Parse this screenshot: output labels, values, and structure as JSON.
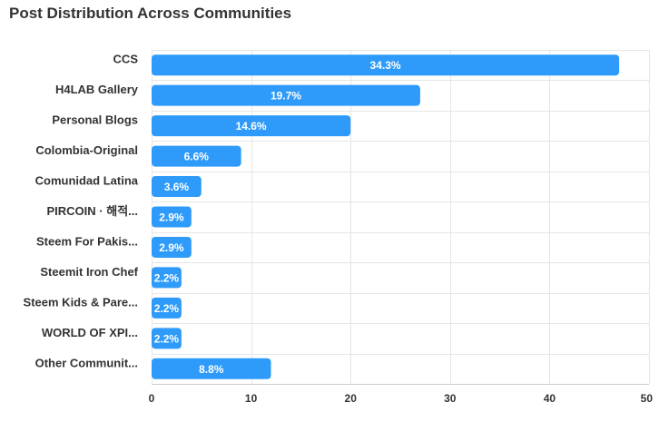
{
  "chart_data": {
    "type": "bar",
    "orientation": "horizontal",
    "title": "Post Distribution Across Communities",
    "xlabel": "",
    "ylabel": "",
    "categories": [
      "CCS",
      "H4LAB Gallery",
      "Personal Blogs",
      "Colombia-Original",
      "Comunidad Latina",
      "PIRCOIN · 해적...",
      "Steem For Pakis...",
      "Steemit Iron Chef",
      "Steem Kids & Pare...",
      "WORLD OF XPI...",
      "Other Communit..."
    ],
    "values": [
      47,
      27,
      20,
      9,
      5,
      4,
      4,
      3,
      3,
      3,
      12
    ],
    "data_labels": [
      "34.3%",
      "19.7%",
      "14.6%",
      "6.6%",
      "3.6%",
      "2.9%",
      "2.9%",
      "2.2%",
      "2.2%",
      "2.2%",
      "8.8%"
    ],
    "xlim": [
      0,
      50
    ],
    "xticks": [
      0,
      10,
      20,
      30,
      40,
      50
    ],
    "bar_color": "#2e9bfa",
    "grid": true,
    "legend": "none"
  }
}
